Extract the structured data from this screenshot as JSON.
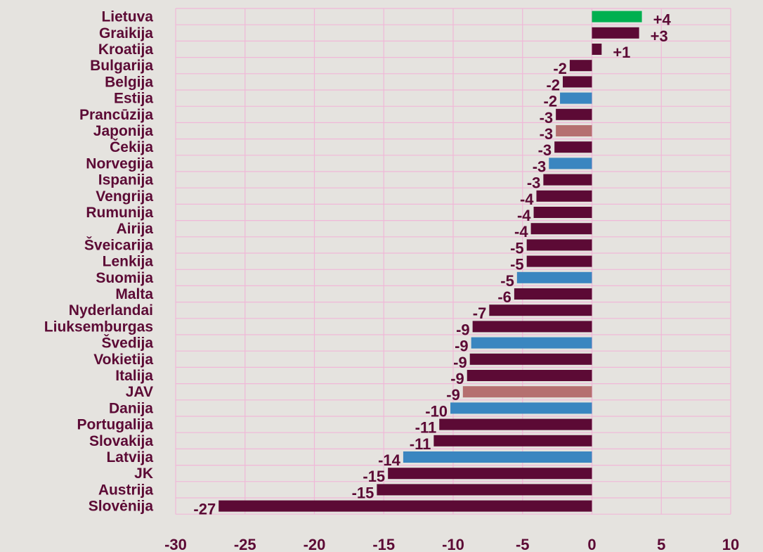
{
  "chart_data": {
    "type": "bar",
    "orientation": "horizontal",
    "title": "",
    "xlabel": "",
    "ylabel": "",
    "xlim": [
      -30,
      10
    ],
    "x_ticks": [
      -30,
      -25,
      -20,
      -15,
      -10,
      -5,
      0,
      5,
      10
    ],
    "grid": true,
    "legend": "none",
    "categories": [
      "Lietuva",
      "Graikija",
      "Kroatija",
      "Bulgarija",
      "Belgija",
      "Estija",
      "Prancūzija",
      "Japonija",
      "Čekija",
      "Norvegija",
      "Ispanija",
      "Vengrija",
      "Rumunija",
      "Airija",
      "Šveicarija",
      "Lenkija",
      "Suomija",
      "Malta",
      "Nyderlandai",
      "Liuksemburgas",
      "Švedija",
      "Vokietija",
      "Italija",
      "JAV",
      "Danija",
      "Portugalija",
      "Slovakija",
      "Latvija",
      "JK",
      "Austrija",
      "Slovėnija"
    ],
    "values": [
      3.6,
      3.4,
      0.7,
      -1.6,
      -2.1,
      -2.3,
      -2.6,
      -2.6,
      -2.7,
      -3.1,
      -3.5,
      -4.0,
      -4.2,
      -4.4,
      -4.7,
      -4.7,
      -5.4,
      -5.6,
      -7.4,
      -8.6,
      -8.7,
      -8.8,
      -9.0,
      -9.3,
      -10.2,
      -11.0,
      -11.4,
      -13.6,
      -14.7,
      -15.5,
      -26.9
    ],
    "value_labels": [
      "+4",
      "+3",
      "+1",
      "-2",
      "-2",
      "-2",
      "-3",
      "-3",
      "-3",
      "-3",
      "-3",
      "-4",
      "-4",
      "-4",
      "-5",
      "-5",
      "-5",
      "-6",
      "-7",
      "-9",
      "-9",
      "-9",
      "-9",
      "-9",
      "-10",
      "-11",
      "-11",
      "-14",
      "-15",
      "-15",
      "-27"
    ],
    "bar_colors": [
      "#00b050",
      "#5c0a35",
      "#5c0a35",
      "#5c0a35",
      "#5c0a35",
      "#3a86c0",
      "#5c0a35",
      "#b57070",
      "#5c0a35",
      "#3a86c0",
      "#5c0a35",
      "#5c0a35",
      "#5c0a35",
      "#5c0a35",
      "#5c0a35",
      "#5c0a35",
      "#3a86c0",
      "#5c0a35",
      "#5c0a35",
      "#5c0a35",
      "#3a86c0",
      "#5c0a35",
      "#5c0a35",
      "#b57070",
      "#3a86c0",
      "#5c0a35",
      "#5c0a35",
      "#3a86c0",
      "#5c0a35",
      "#5c0a35",
      "#5c0a35"
    ]
  },
  "colors": {
    "text": "#5c0a35",
    "grid": "#f0b8d8",
    "background": "#e5e3df"
  }
}
